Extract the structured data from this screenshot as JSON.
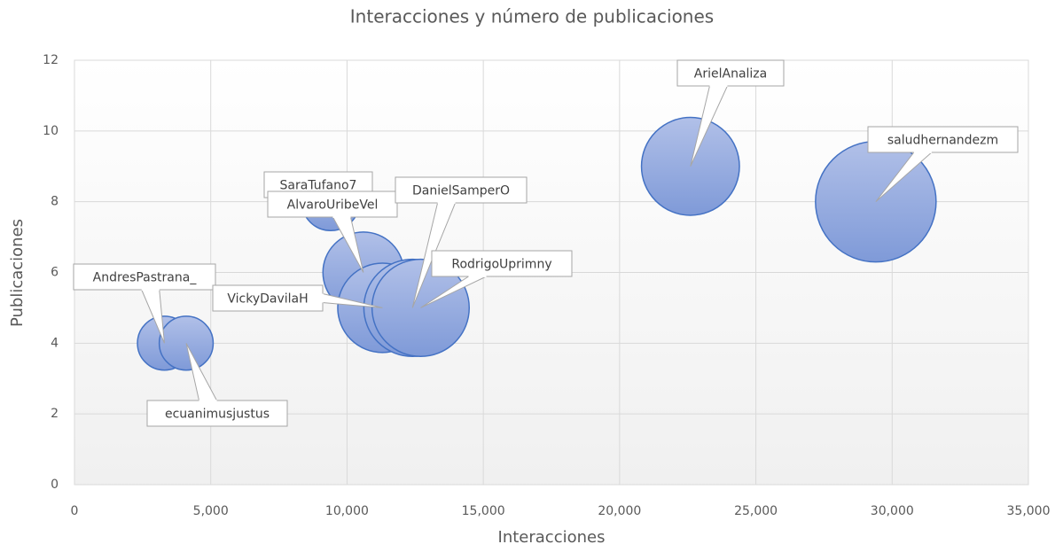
{
  "chart_data": {
    "type": "bubble",
    "title": "Interacciones y número de publicaciones",
    "x_label": "Interacciones",
    "y_label": "Publicaciones",
    "labels": [
      "AndresPastrana_",
      "ecuanimusjustus",
      "SaraTufano7",
      "AlvaroUribeVel",
      "VickyDavilaH",
      "DanielSamperO",
      "RodrigoUprimny",
      "ArielAnaliza",
      "saludhernandezm"
    ],
    "x": [
      3300,
      4100,
      9400,
      10600,
      11300,
      12400,
      12700,
      22600,
      29400
    ],
    "values": [
      4,
      4,
      8,
      6,
      5,
      5,
      5,
      9,
      8
    ],
    "sizes": [
      20,
      20,
      23,
      45,
      55,
      65,
      65,
      66,
      100
    ],
    "color": "#8faadc",
    "edge_color": "#4472c4",
    "xlim": [
      0,
      35000
    ],
    "xticks": [
      0,
      {
        "value": 5000,
        "label": "5,000"
      },
      {
        "value": 10000,
        "label": "10,000"
      },
      {
        "value": 15000,
        "label": "15,000"
      },
      {
        "value": 20000,
        "label": "20,000"
      },
      {
        "value": 25000,
        "label": "25,000"
      },
      {
        "value": 30000,
        "label": "30,000"
      },
      {
        "value": 35000,
        "label": "35,000"
      }
    ],
    "ylim": [
      0,
      12
    ],
    "yticks": [
      0,
      2,
      4,
      6,
      8,
      10,
      12
    ],
    "grid": true
  }
}
